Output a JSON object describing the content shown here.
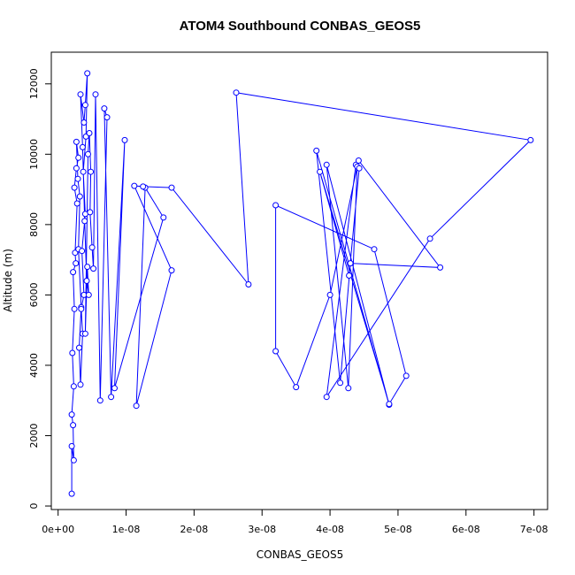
{
  "chart_data": {
    "type": "line",
    "title": "ATOM4 Southbound CONBAS_GEOS5",
    "xlabel": "CONBAS_GEOS5",
    "ylabel": "Altitude (m)",
    "xlim": [
      -1e-09,
      7.2e-08
    ],
    "ylim": [
      -100,
      12900
    ],
    "x_ticks": [
      0,
      1e-08,
      2e-08,
      3e-08,
      4e-08,
      5e-08,
      6e-08,
      7e-08
    ],
    "x_tick_labels": [
      "0e+00",
      "1e-08",
      "2e-08",
      "3e-08",
      "4e-08",
      "5e-08",
      "6e-08",
      "7e-08"
    ],
    "y_ticks": [
      0,
      2000,
      4000,
      6000,
      8000,
      10000,
      12000
    ],
    "y_tick_labels": [
      "0",
      "2000",
      "4000",
      "6000",
      "8000",
      "10000",
      "12000"
    ],
    "grid": false,
    "series_color": "#0000ff",
    "series": [
      {
        "points": [
          [
            2e-09,
            350
          ],
          [
            2e-09,
            1700
          ],
          [
            2.3e-09,
            1300
          ],
          [
            2.2e-09,
            2300
          ],
          [
            2e-09,
            2600
          ],
          [
            2.3e-09,
            3400
          ],
          [
            2.1e-09,
            4350
          ],
          [
            2.4e-09,
            5600
          ],
          [
            2.2e-09,
            6650
          ],
          [
            2.6e-09,
            6900
          ],
          [
            2.5e-09,
            7200
          ],
          [
            2.8e-09,
            8600
          ],
          [
            2.4e-09,
            9050
          ],
          [
            2.7e-09,
            9600
          ],
          [
            3e-09,
            9900
          ],
          [
            2.7e-09,
            10350
          ],
          [
            2.9e-09,
            9300
          ],
          [
            3.2e-09,
            8800
          ],
          [
            3e-09,
            7300
          ],
          [
            3.4e-09,
            5650
          ],
          [
            3.1e-09,
            4500
          ],
          [
            3.3e-09,
            3450
          ],
          [
            3.6e-09,
            4900
          ],
          [
            3.4e-09,
            5600
          ],
          [
            3.8e-09,
            6000
          ],
          [
            3.5e-09,
            7250
          ],
          [
            4e-09,
            8300
          ],
          [
            3.7e-09,
            9500
          ],
          [
            4.1e-09,
            10500
          ],
          [
            4.3e-09,
            12300
          ],
          [
            4e-09,
            11400
          ],
          [
            3.8e-09,
            10900
          ],
          [
            3.3e-09,
            11700
          ],
          [
            3.6e-09,
            10200
          ],
          [
            3.9e-09,
            8100
          ],
          [
            4.2e-09,
            6400
          ],
          [
            4.5e-09,
            6000
          ],
          [
            4.3e-09,
            6800
          ],
          [
            4e-09,
            4900
          ],
          [
            4.4e-09,
            10000
          ],
          [
            4.6e-09,
            10600
          ],
          [
            4.8e-09,
            9500
          ],
          [
            4.7e-09,
            8350
          ],
          [
            5e-09,
            7350
          ],
          [
            5.2e-09,
            6750
          ],
          [
            5.5e-09,
            11700
          ],
          [
            6.2e-09,
            3000
          ],
          [
            7.2e-09,
            11050
          ],
          [
            6.8e-09,
            11300
          ],
          [
            7.8e-09,
            3100
          ],
          [
            9.8e-09,
            10400
          ],
          [
            8.3e-09,
            3350
          ],
          [
            1.55e-08,
            8200
          ],
          [
            1.28e-08,
            9050
          ],
          [
            1.15e-08,
            2850
          ],
          [
            1.67e-08,
            6700
          ],
          [
            1.12e-08,
            9100
          ],
          [
            1.25e-08,
            9080
          ],
          [
            1.67e-08,
            9050
          ],
          [
            2.8e-08,
            6300
          ],
          [
            2.62e-08,
            11750
          ],
          [
            6.95e-08,
            10400
          ],
          [
            5.47e-08,
            7600
          ],
          [
            3.95e-08,
            3100
          ],
          [
            4.38e-08,
            9700
          ],
          [
            4.42e-08,
            9820
          ],
          [
            5.62e-08,
            6780
          ],
          [
            4.3e-08,
            6900
          ],
          [
            4.15e-08,
            3500
          ],
          [
            3.8e-08,
            10100
          ],
          [
            4.87e-08,
            2880
          ],
          [
            3.95e-08,
            9700
          ],
          [
            4.27e-08,
            3350
          ],
          [
            4.4e-08,
            9650
          ],
          [
            4e-08,
            6000
          ],
          [
            3.5e-08,
            3380
          ],
          [
            3.2e-08,
            4400
          ],
          [
            3.2e-08,
            8550
          ],
          [
            4.65e-08,
            7300
          ],
          [
            5.12e-08,
            3700
          ],
          [
            4.87e-08,
            2900
          ],
          [
            3.85e-08,
            9500
          ],
          [
            4.28e-08,
            6550
          ],
          [
            4.43e-08,
            9600
          ]
        ]
      }
    ]
  }
}
